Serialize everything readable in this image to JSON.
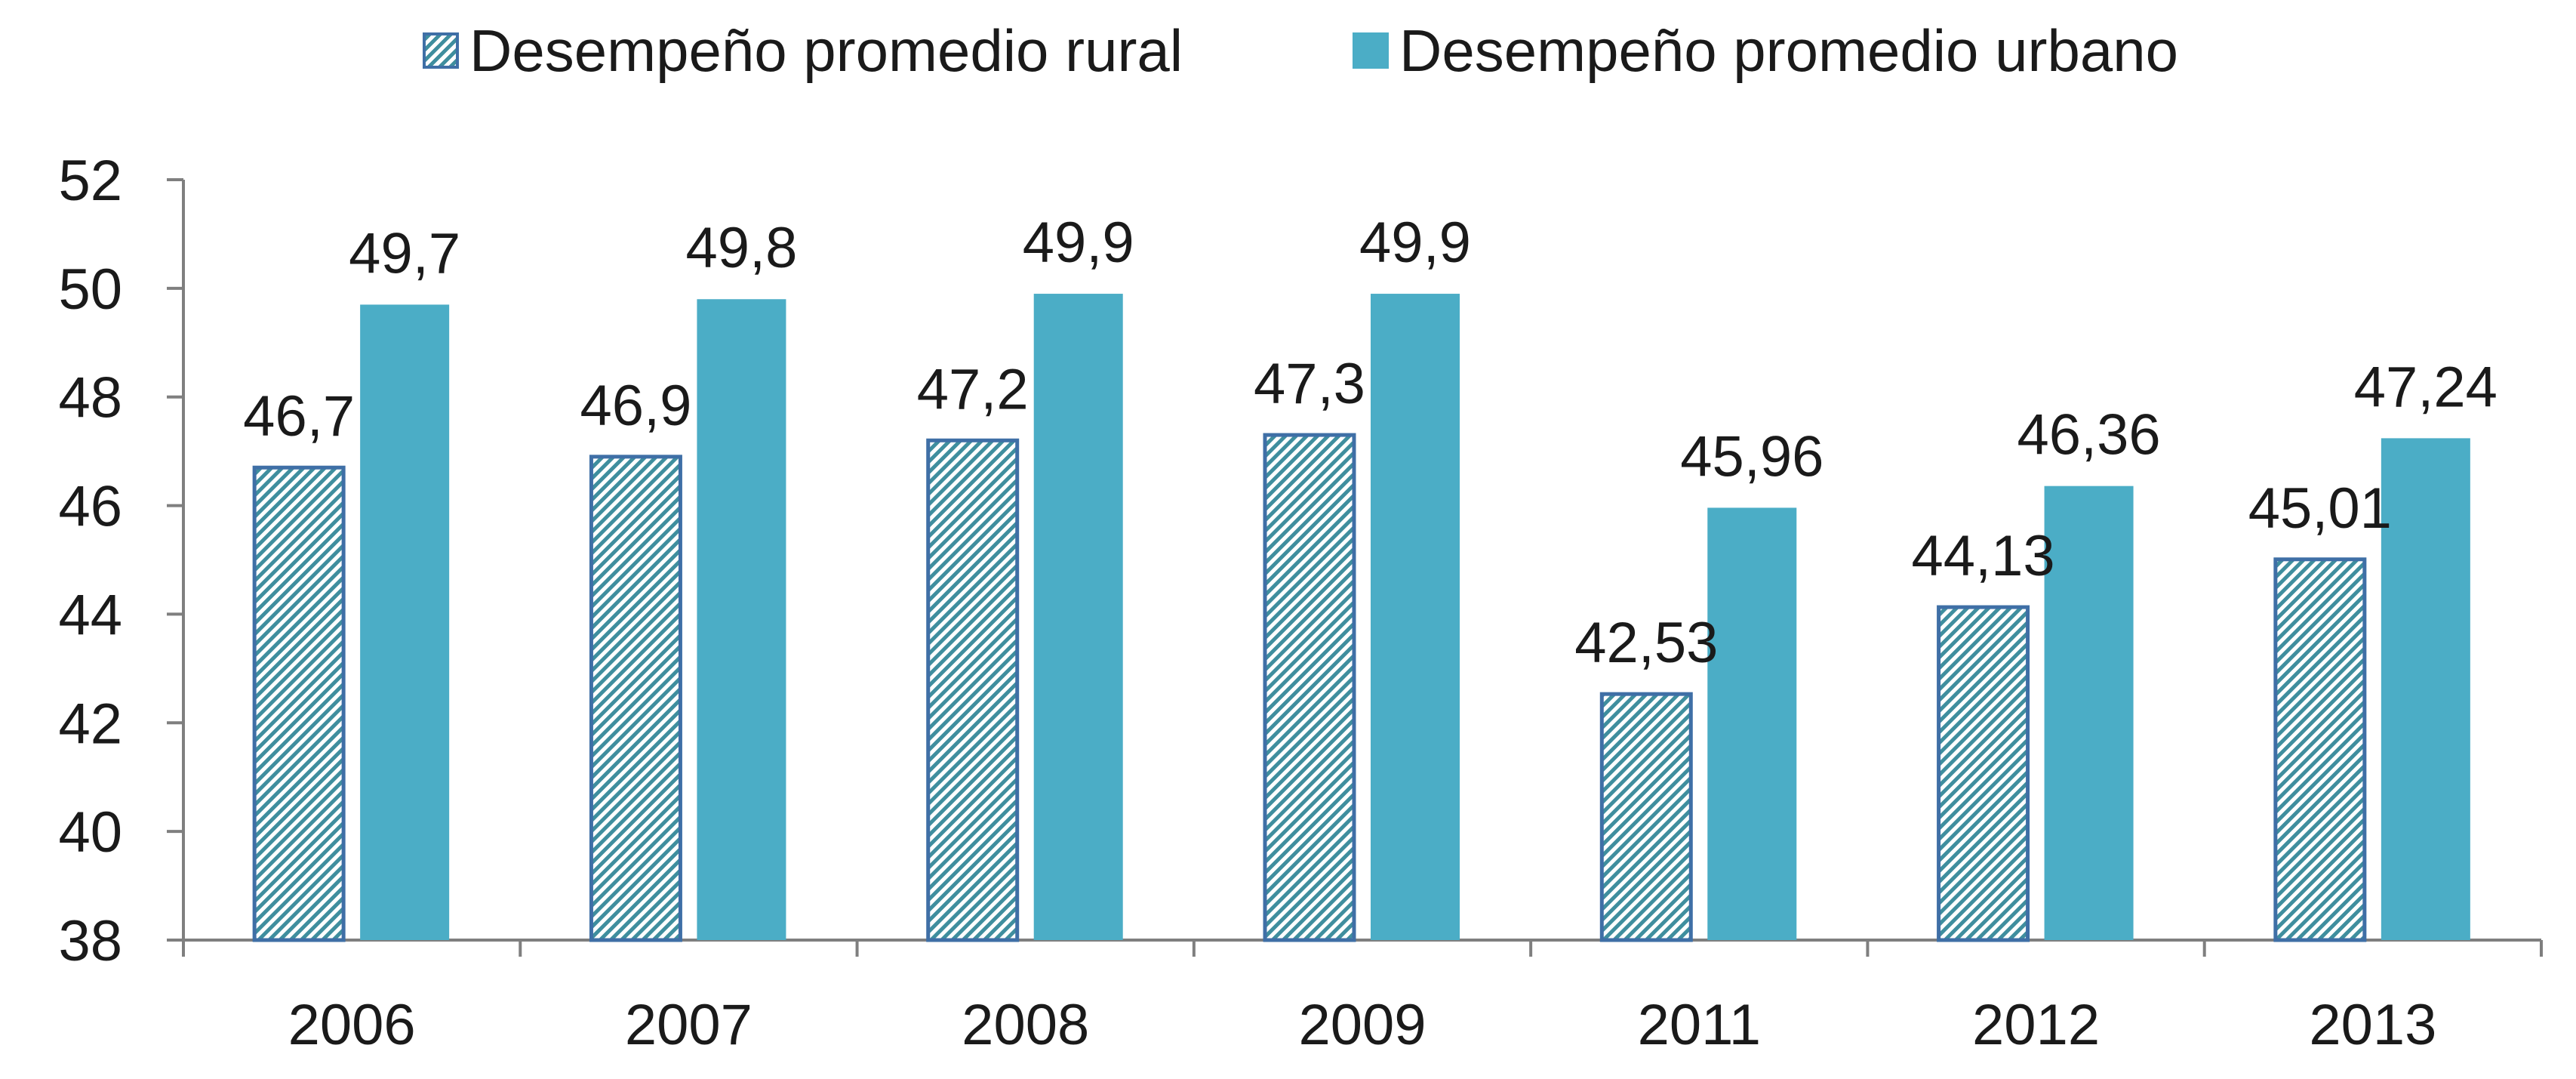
{
  "chart_data": {
    "type": "bar",
    "categories": [
      "2006",
      "2007",
      "2008",
      "2009",
      "2011",
      "2012",
      "2013"
    ],
    "series": [
      {
        "name": "Desempeño promedio rural",
        "values": [
          46.7,
          46.9,
          47.2,
          47.3,
          42.53,
          44.13,
          45.01
        ],
        "labels": [
          "46,7",
          "46,9",
          "47,2",
          "47,3",
          "42,53",
          "44,13",
          "45,01"
        ],
        "color": "#3f8e9e",
        "border_color": "#3f6fa6",
        "pattern": "diagonal-stripes"
      },
      {
        "name": "Desempeño promedio urbano",
        "values": [
          49.7,
          49.8,
          49.9,
          49.9,
          45.96,
          46.36,
          47.24
        ],
        "labels": [
          "49,7",
          "49,8",
          "49,9",
          "49,9",
          "45,96",
          "46,36",
          "47,24"
        ],
        "color": "#4badc6",
        "pattern": "solid"
      }
    ],
    "ylim": [
      38,
      52
    ],
    "yticks": [
      38,
      40,
      42,
      44,
      46,
      48,
      50,
      52
    ],
    "title": "",
    "xlabel": "",
    "ylabel": "",
    "legend_position": "top",
    "grid": false
  }
}
